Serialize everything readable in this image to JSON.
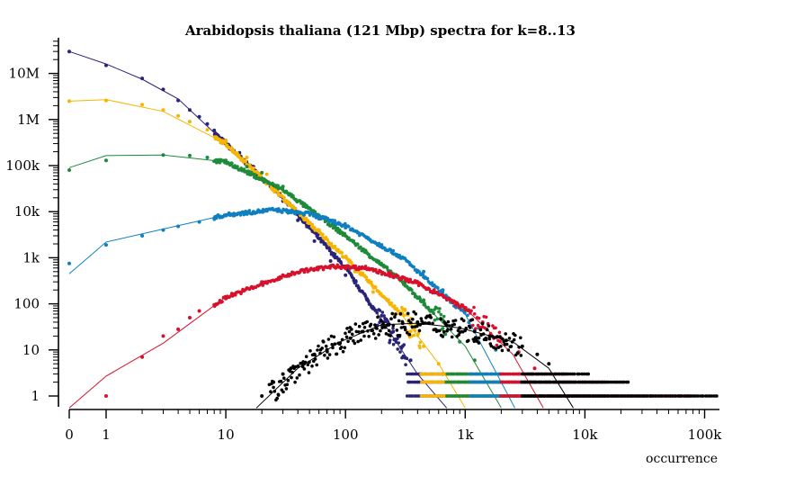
{
  "chart_data": {
    "type": "scatter",
    "title": "Arabidopsis thaliana (121 Mbp) spectra for k=8..13",
    "xlabel": "occurrence",
    "ylabel": "",
    "x_scale": "log",
    "y_scale": "log",
    "xlim": [
      0,
      130000
    ],
    "ylim": [
      0.55,
      50000000
    ],
    "x_ticks": [
      0,
      1,
      10,
      100,
      1000,
      10000,
      100000
    ],
    "x_tick_labels": [
      "0",
      "1",
      "10",
      "100",
      "1k",
      "10k",
      "100k"
    ],
    "y_ticks": [
      1,
      10,
      100,
      1000,
      10000,
      100000,
      1000000,
      10000000
    ],
    "y_tick_labels": [
      "1",
      "10",
      "100",
      "1k",
      "10k",
      "100k",
      "1M",
      "10M"
    ],
    "grid": false,
    "legend": "none",
    "series": [
      {
        "color": "#2a2477",
        "mode": "markers+line",
        "fit": [
          [
            0,
            30000000
          ],
          [
            1,
            16000000
          ],
          [
            2,
            7500000
          ],
          [
            4,
            2800000
          ],
          [
            10,
            300000
          ],
          [
            30,
            20000
          ],
          [
            100,
            600
          ],
          [
            200,
            45
          ],
          [
            400,
            3
          ],
          [
            700,
            0.55
          ]
        ],
        "points": [
          [
            0,
            30000000
          ],
          [
            1,
            15000000
          ],
          [
            2,
            7800000
          ],
          [
            3,
            4500000
          ],
          [
            4,
            2600000
          ],
          [
            5,
            1600000
          ],
          [
            6,
            1150000
          ],
          [
            7,
            800000
          ],
          [
            8,
            580000
          ],
          [
            10,
            350000
          ],
          [
            13,
            190000
          ],
          [
            17,
            95000
          ],
          [
            22,
            45000
          ],
          [
            30,
            17000
          ],
          [
            40,
            6500
          ],
          [
            55,
            2300
          ],
          [
            75,
            850
          ],
          [
            100,
            420
          ],
          [
            150,
            130
          ],
          [
            200,
            55
          ],
          [
            250,
            25
          ],
          [
            300,
            12
          ],
          [
            350,
            6
          ],
          [
            420,
            3
          ]
        ],
        "tail": {
          "x_from": 330,
          "x_to": 9000,
          "y_levels": [
            1,
            2,
            3
          ]
        }
      },
      {
        "color": "#f7b500",
        "mode": "markers+line",
        "fit": [
          [
            0,
            2500000
          ],
          [
            1,
            2700000
          ],
          [
            3,
            1500000
          ],
          [
            10,
            300000
          ],
          [
            30,
            20000
          ],
          [
            100,
            1000
          ],
          [
            300,
            55
          ],
          [
            600,
            5
          ],
          [
            1000,
            0.55
          ]
        ],
        "points": [
          [
            0,
            2500000
          ],
          [
            1,
            2600000
          ],
          [
            2,
            2100000
          ],
          [
            3,
            1600000
          ],
          [
            4,
            1200000
          ],
          [
            5,
            900000
          ],
          [
            7,
            600000
          ],
          [
            10,
            350000
          ],
          [
            15,
            150000
          ],
          [
            22,
            65000
          ],
          [
            30,
            28000
          ],
          [
            45,
            9000
          ],
          [
            60,
            4000
          ],
          [
            85,
            1500
          ],
          [
            120,
            500
          ],
          [
            170,
            180
          ],
          [
            250,
            60
          ],
          [
            350,
            25
          ],
          [
            450,
            12
          ],
          [
            600,
            5
          ]
        ],
        "tail": {
          "x_from": 430,
          "x_to": 12000,
          "y_levels": [
            1,
            2,
            3
          ]
        }
      },
      {
        "color": "#1e8b3a",
        "mode": "markers+line",
        "fit": [
          [
            0,
            90000
          ],
          [
            1,
            165000
          ],
          [
            3,
            170000
          ],
          [
            10,
            120000
          ],
          [
            30,
            30000
          ],
          [
            100,
            3000
          ],
          [
            300,
            300
          ],
          [
            1000,
            12
          ],
          [
            2000,
            0.55
          ]
        ],
        "points": [
          [
            0,
            80000
          ],
          [
            1,
            130000
          ],
          [
            3,
            170000
          ],
          [
            5,
            165000
          ],
          [
            7,
            150000
          ],
          [
            10,
            130000
          ],
          [
            15,
            95000
          ],
          [
            20,
            70000
          ],
          [
            30,
            35000
          ],
          [
            45,
            15000
          ],
          [
            60,
            8000
          ],
          [
            80,
            4500
          ],
          [
            100,
            3000
          ],
          [
            150,
            1300
          ],
          [
            200,
            700
          ],
          [
            300,
            300
          ],
          [
            450,
            120
          ],
          [
            650,
            45
          ],
          [
            900,
            15
          ],
          [
            1200,
            6
          ]
        ],
        "tail": {
          "x_from": 700,
          "x_to": 16000,
          "y_levels": [
            1,
            2,
            3
          ]
        }
      },
      {
        "color": "#0f7fc0",
        "mode": "markers+line",
        "fit": [
          [
            0,
            450
          ],
          [
            1,
            2200
          ],
          [
            3,
            4200
          ],
          [
            10,
            8500
          ],
          [
            25,
            11000
          ],
          [
            50,
            9000
          ],
          [
            100,
            5000
          ],
          [
            300,
            1000
          ],
          [
            1000,
            60
          ],
          [
            2600,
            0.55
          ]
        ],
        "points": [
          [
            0,
            750
          ],
          [
            1,
            1900
          ],
          [
            2,
            3000
          ],
          [
            3,
            4000
          ],
          [
            4,
            4800
          ],
          [
            6,
            6000
          ],
          [
            8,
            7200
          ],
          [
            10,
            8200
          ],
          [
            13,
            9200
          ],
          [
            17,
            10000
          ],
          [
            22,
            10500
          ],
          [
            28,
            10300
          ],
          [
            35,
            9600
          ],
          [
            45,
            8500
          ],
          [
            60,
            7000
          ],
          [
            80,
            5600
          ],
          [
            100,
            4500
          ],
          [
            150,
            2800
          ],
          [
            200,
            1900
          ],
          [
            300,
            1000
          ],
          [
            450,
            500
          ],
          [
            650,
            200
          ],
          [
            900,
            85
          ],
          [
            1300,
            30
          ],
          [
            1800,
            10
          ]
        ],
        "tail": {
          "x_from": 1100,
          "x_to": 40000,
          "y_levels": [
            1,
            2,
            3
          ]
        }
      },
      {
        "color": "#d8102c",
        "mode": "markers+line",
        "fit": [
          [
            0,
            0.55
          ],
          [
            1,
            2.7
          ],
          [
            3,
            14
          ],
          [
            10,
            140
          ],
          [
            40,
            500
          ],
          [
            80,
            650
          ],
          [
            150,
            600
          ],
          [
            400,
            280
          ],
          [
            1000,
            80
          ],
          [
            2500,
            8
          ],
          [
            4500,
            0.55
          ]
        ],
        "points": [
          [
            1,
            1
          ],
          [
            2,
            7
          ],
          [
            3,
            20
          ],
          [
            4,
            28
          ],
          [
            5,
            50
          ],
          [
            6,
            70
          ],
          [
            8,
            95
          ],
          [
            10,
            130
          ],
          [
            15,
            220
          ],
          [
            20,
            300
          ],
          [
            30,
            420
          ],
          [
            45,
            540
          ],
          [
            60,
            600
          ],
          [
            80,
            650
          ],
          [
            100,
            640
          ],
          [
            130,
            620
          ],
          [
            170,
            560
          ],
          [
            230,
            480
          ],
          [
            300,
            380
          ],
          [
            400,
            290
          ],
          [
            550,
            200
          ],
          [
            750,
            120
          ],
          [
            1000,
            75
          ],
          [
            1400,
            40
          ],
          [
            2000,
            18
          ],
          [
            2800,
            9
          ],
          [
            3800,
            4
          ]
        ],
        "tail": {
          "x_from": 2000,
          "x_to": 80000,
          "y_levels": [
            1,
            2,
            3
          ]
        }
      },
      {
        "color": "#000000",
        "mode": "markers+line",
        "fit": [
          [
            18,
            0.55
          ],
          [
            40,
            4
          ],
          [
            90,
            15
          ],
          [
            200,
            35
          ],
          [
            400,
            38
          ],
          [
            900,
            30
          ],
          [
            2500,
            15
          ],
          [
            5000,
            4
          ],
          [
            8000,
            0.55
          ]
        ],
        "points": [
          [
            20,
            1
          ],
          [
            25,
            2
          ],
          [
            30,
            3
          ],
          [
            35,
            4
          ],
          [
            45,
            5
          ],
          [
            55,
            8
          ],
          [
            70,
            10
          ],
          [
            90,
            14
          ],
          [
            110,
            18
          ],
          [
            140,
            25
          ],
          [
            180,
            30
          ],
          [
            230,
            35
          ],
          [
            300,
            38
          ],
          [
            400,
            40
          ],
          [
            500,
            38
          ],
          [
            700,
            34
          ],
          [
            900,
            30
          ],
          [
            1200,
            25
          ],
          [
            1600,
            20
          ],
          [
            2200,
            16
          ],
          [
            3000,
            12
          ],
          [
            4000,
            8
          ],
          [
            5000,
            5
          ]
        ],
        "tail": {
          "x_from": 3000,
          "x_to": 130000,
          "y_levels": [
            1,
            2,
            3
          ]
        }
      }
    ]
  }
}
